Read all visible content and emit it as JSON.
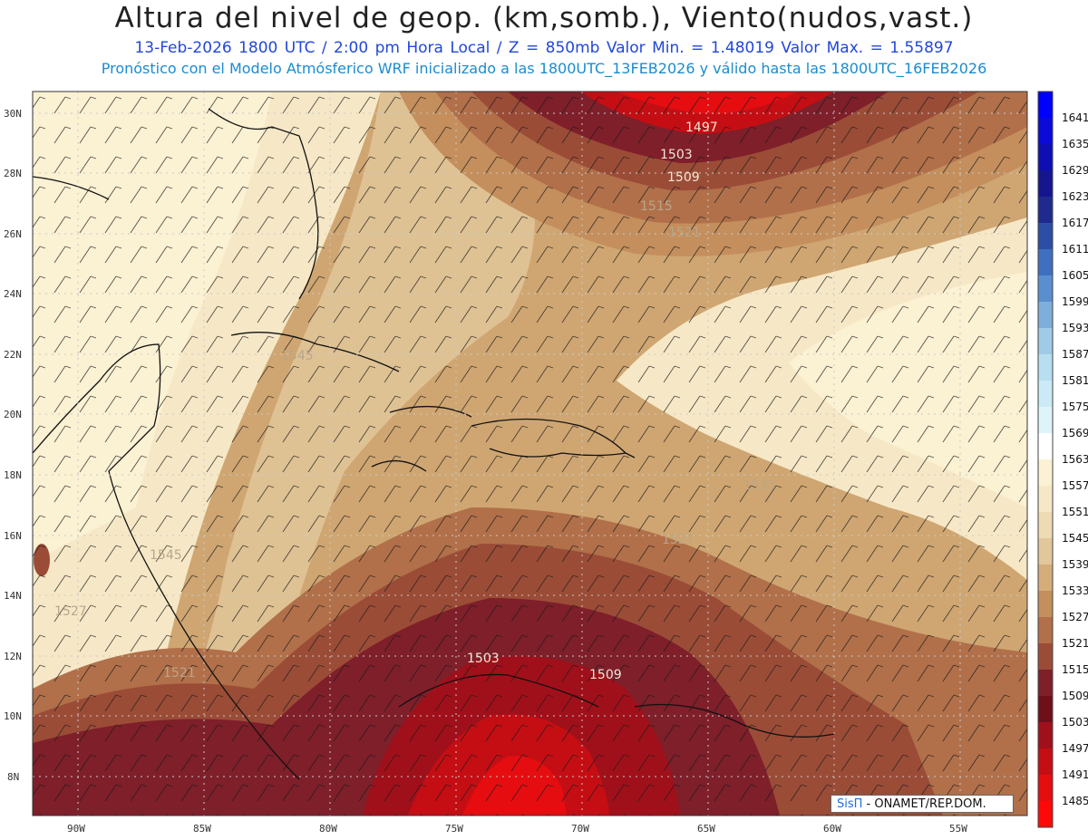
{
  "header": {
    "title": "Altura del nivel de geop. (km,somb.), Viento(nudos,vast.)",
    "subtitle_line1": "13-Feb-2026  1800 UTC / 2:00 pm Hora Local / Z = 850mb    Valor Min. = 1.48019  Valor Max. = 1.55897",
    "subtitle_line2": "Pronóstico con el Modelo Atmósferico WRF inicializado a las 1800UTC_13FEB2026 y válido hasta las  1800UTC_16FEB2026"
  },
  "map": {
    "lat_ticks": [
      "30N",
      "28N",
      "26N",
      "24N",
      "22N",
      "20N",
      "18N",
      "16N",
      "14N",
      "12N",
      "10N",
      "8N"
    ],
    "lon_ticks": [
      "90W",
      "85W",
      "80W",
      "75W",
      "70W",
      "65W",
      "60W",
      "55W"
    ],
    "contour_labels": [
      "1497",
      "1503",
      "1509",
      "1515",
      "1521",
      "1545",
      "1503",
      "1509",
      "1527",
      "1533",
      "1545",
      "1521",
      "1527"
    ]
  },
  "colorbar": {
    "levels": [
      "1641",
      "1635",
      "1629",
      "1623",
      "1617",
      "1611",
      "1605",
      "1599",
      "1593",
      "1587",
      "1581",
      "1575",
      "1569",
      "1563",
      "1557",
      "1551",
      "1545",
      "1539",
      "1533",
      "1527",
      "1521",
      "1515",
      "1509",
      "1503",
      "1497",
      "1491",
      "1485"
    ],
    "colors": [
      "#0000ff",
      "#0a0ad9",
      "#0d0fb3",
      "#15168f",
      "#1e2a8e",
      "#2d4ea6",
      "#3f6fbf",
      "#5a8fcf",
      "#7eaedc",
      "#9fcbe6",
      "#b8dff0",
      "#cbeaf5",
      "#dff4f9",
      "#ffffff",
      "#fbf1d3",
      "#f6e8c6",
      "#eddbb3",
      "#e2c79a",
      "#d4ad7a",
      "#c48f5d",
      "#b1704a",
      "#9b4c37",
      "#7e1f2a",
      "#6e0f1a",
      "#a0101a",
      "#c40e14",
      "#e50d10",
      "#ff0808"
    ]
  },
  "credit": {
    "brand": "SisΠ",
    "text": " - ONAMET/REP.DOM."
  }
}
